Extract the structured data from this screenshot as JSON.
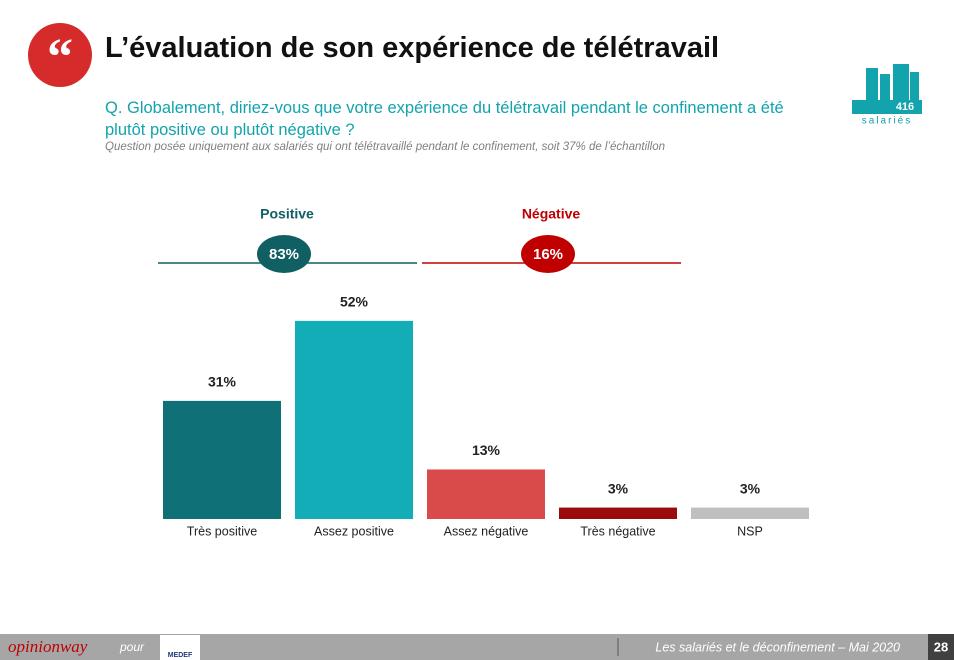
{
  "header": {
    "title": "L’évaluation de son expérience de télétravail",
    "sample": {
      "count": "416",
      "label": "salariés"
    }
  },
  "chart_data": {
    "type": "bar",
    "subtitle": "Q. Globalement, diriez-vous que votre expérience du télétravail pendant le confinement a été plutôt positive ou plutôt négative ?",
    "note": "Question posée uniquement aux salariés qui ont télétravaillé pendant le confinement, soit 37% de l’échantillon",
    "categories": [
      "Très positive",
      "Assez positive",
      "Assez négative",
      "Très négative",
      "NSP"
    ],
    "values": [
      31,
      52,
      13,
      3,
      3
    ],
    "value_labels": [
      "31%",
      "52%",
      "13%",
      "3%",
      "3%"
    ],
    "colors": [
      "#0f7177",
      "#13adb7",
      "#d94a4a",
      "#9a0b0b",
      "#bfbfbf"
    ],
    "groups": [
      {
        "label": "Positive",
        "value": 83,
        "value_label": "83%",
        "color": "#0f5f63"
      },
      {
        "label": "Négative",
        "value": 16,
        "value_label": "16%",
        "color": "#c00000"
      }
    ]
  },
  "footer": {
    "brand": "opinionway",
    "connector": "pour",
    "client": "MEDEF",
    "caption": "Les salariés et le déconfinement – Mai 2020",
    "page": "28"
  }
}
